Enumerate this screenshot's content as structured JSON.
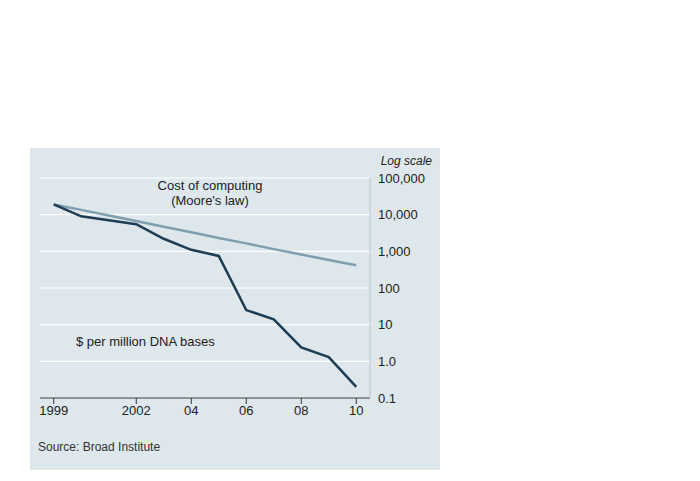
{
  "chart_data": {
    "type": "line",
    "ylabel": "Log scale",
    "source": "Source: Broad Institute",
    "x": [
      1999,
      2000,
      2001,
      2002,
      2003,
      2004,
      2005,
      2006,
      2007,
      2008,
      2009,
      2010
    ],
    "series": [
      {
        "name": "Cost of computing (Moore's law)",
        "color": "#7f9fb1",
        "values": [
          19000,
          13500,
          9500,
          6700,
          4700,
          3300,
          2300,
          1650,
          1150,
          820,
          580,
          420
        ]
      },
      {
        "name": "$ per million DNA bases",
        "color": "#1e3d52",
        "values": [
          19000,
          9000,
          7000,
          5500,
          2200,
          1100,
          750,
          25,
          14,
          2.4,
          1.3,
          0.2
        ]
      }
    ],
    "xlim": [
      1998.5,
      2010.5
    ],
    "xticks": [
      1999,
      2002,
      {
        "value": 2004,
        "label": "04"
      },
      {
        "value": 2006,
        "label": "06"
      },
      {
        "value": 2008,
        "label": "08"
      },
      {
        "value": 2010,
        "label": "10"
      }
    ],
    "ylim": [
      0.1,
      100000
    ],
    "yticks": [
      0.1,
      {
        "value": 1,
        "label": "1.0"
      },
      10,
      100,
      {
        "value": 1000,
        "label": "1,000"
      },
      {
        "value": 10000,
        "label": "10,000"
      },
      {
        "value": 100000,
        "label": "100,000"
      }
    ],
    "log": "y",
    "grid": true
  }
}
